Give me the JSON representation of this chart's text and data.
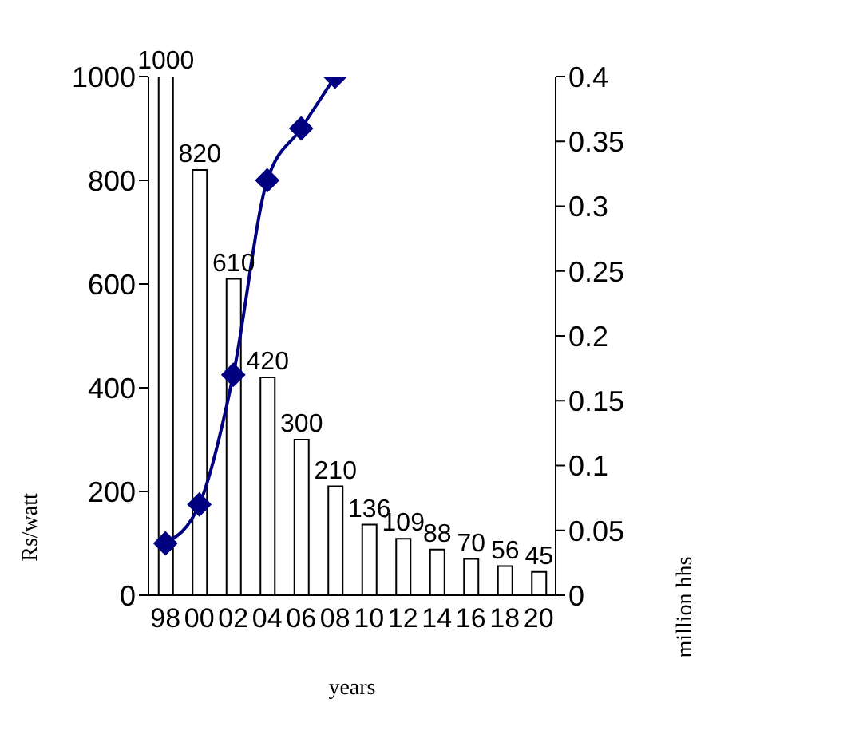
{
  "chart_data": {
    "type": "bar",
    "xlabel": "years",
    "ylabel": "Rs/watt",
    "y2label": "million hhs",
    "categories": [
      "98",
      "00",
      "02",
      "04",
      "06",
      "08",
      "10",
      "12",
      "14",
      "16",
      "18",
      "20"
    ],
    "series": [
      {
        "color": "#ffffff",
        "values": [
          1000,
          820,
          610,
          420,
          300,
          210,
          136,
          109,
          88,
          70,
          56,
          45
        ],
        "value_labels": [
          "1000",
          "820",
          "610",
          "420",
          "300",
          "210",
          "136",
          "109",
          "88",
          "70",
          "56",
          "45"
        ]
      },
      {
        "type": "line",
        "axis": "y2",
        "color": "#000080",
        "marker": "diamond",
        "values": [
          0.04,
          0.07,
          0.17,
          0.32,
          0.36,
          0.4,
          null,
          null,
          null,
          null,
          null,
          null
        ]
      }
    ],
    "ylim": [
      0,
      1000
    ],
    "yticks": [
      0,
      200,
      400,
      600,
      800,
      1000
    ],
    "y2lim": [
      0,
      0.4
    ],
    "y2ticks": [
      0,
      0.05,
      0.1,
      0.15,
      0.2,
      0.25,
      0.3,
      0.35,
      0.4
    ]
  }
}
